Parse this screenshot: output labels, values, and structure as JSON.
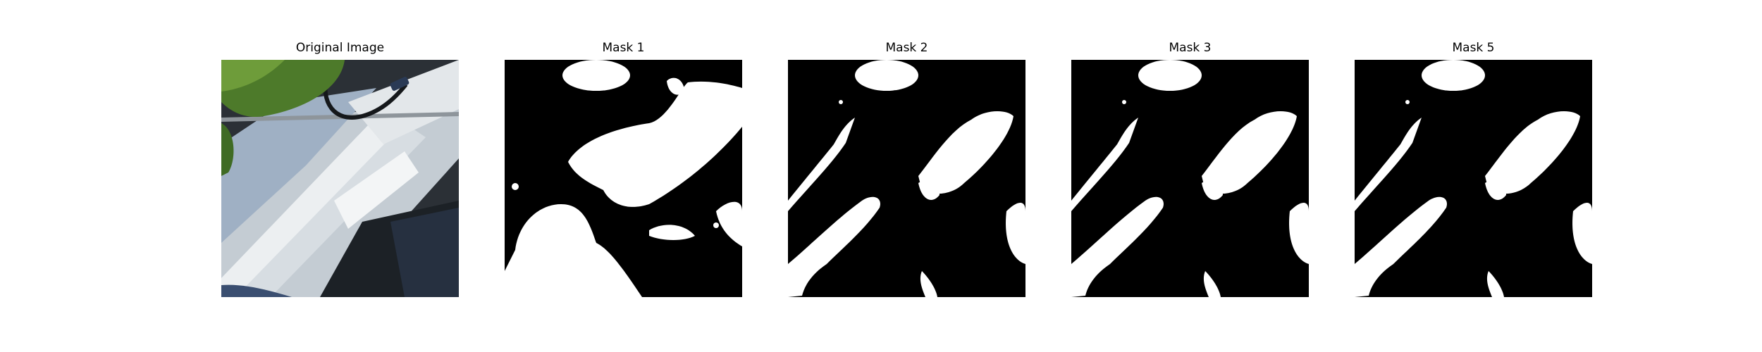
{
  "figure": {
    "panels": [
      {
        "title": "Original Image",
        "kind": "photo"
      },
      {
        "title": "Mask 1",
        "kind": "mask"
      },
      {
        "title": "Mask 2",
        "kind": "mask"
      },
      {
        "title": "Mask 3",
        "kind": "mask"
      },
      {
        "title": "Mask 5",
        "kind": "mask"
      }
    ]
  },
  "colors": {
    "mask_foreground": "#ffffff",
    "mask_background": "#000000",
    "leaf": "#4d7a2a",
    "pipe": "#e8ecee",
    "shadow": "#1c2126"
  }
}
